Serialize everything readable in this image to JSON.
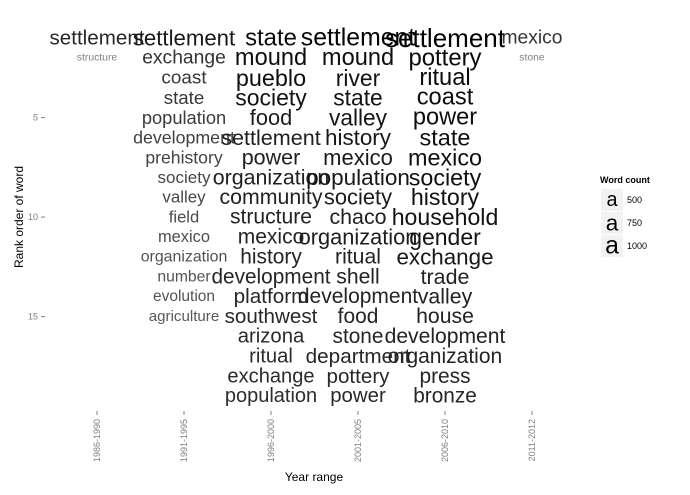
{
  "chart_data": {
    "type": "word-rank",
    "xlabel": "Year range",
    "ylabel": "Rank order of word",
    "categories": [
      "1986-1990",
      "1991-1995",
      "1996-2000",
      "2001-2005",
      "2006-2010",
      "2011-2012"
    ],
    "y_ticks": [
      5,
      10,
      15
    ],
    "ylim": [
      1,
      19
    ],
    "size_range": [
      8,
      26
    ],
    "legend": {
      "title": "Word count",
      "position": "right",
      "items": [
        {
          "label": "500",
          "value": 500
        },
        {
          "label": "750",
          "value": 750
        },
        {
          "label": "1000",
          "value": 1000
        }
      ]
    },
    "series": [
      {
        "category": "1986-1990",
        "words": [
          {
            "word": "settlement",
            "count": 560
          },
          {
            "word": "structure",
            "count": 20
          }
        ]
      },
      {
        "category": "1991-1995",
        "words": [
          {
            "word": "settlement",
            "count": 720
          },
          {
            "word": "exchange",
            "count": 450
          },
          {
            "word": "coast",
            "count": 420
          },
          {
            "word": "state",
            "count": 410
          },
          {
            "word": "population",
            "count": 380
          },
          {
            "word": "development",
            "count": 340
          },
          {
            "word": "prehistory",
            "count": 330
          },
          {
            "word": "society",
            "count": 290
          },
          {
            "word": "valley",
            "count": 280
          },
          {
            "word": "field",
            "count": 260
          },
          {
            "word": "mexico",
            "count": 250
          },
          {
            "word": "organization",
            "count": 220
          },
          {
            "word": "number",
            "count": 210
          },
          {
            "word": "evolution",
            "count": 200
          },
          {
            "word": "agriculture",
            "count": 180
          }
        ]
      },
      {
        "category": "1996-2000",
        "words": [
          {
            "word": "state",
            "count": 900
          },
          {
            "word": "mound",
            "count": 860
          },
          {
            "word": "pueblo",
            "count": 840
          },
          {
            "word": "society",
            "count": 800
          },
          {
            "word": "food",
            "count": 680
          },
          {
            "word": "settlement",
            "count": 660
          },
          {
            "word": "power",
            "count": 650
          },
          {
            "word": "organization",
            "count": 640
          },
          {
            "word": "community",
            "count": 630
          },
          {
            "word": "structure",
            "count": 610
          },
          {
            "word": "mexico",
            "count": 600
          },
          {
            "word": "history",
            "count": 590
          },
          {
            "word": "development",
            "count": 580
          },
          {
            "word": "platform",
            "count": 570
          },
          {
            "word": "southwest",
            "count": 560
          },
          {
            "word": "arizona",
            "count": 540
          },
          {
            "word": "ritual",
            "count": 530
          },
          {
            "word": "exchange",
            "count": 520
          },
          {
            "word": "population",
            "count": 510
          }
        ]
      },
      {
        "category": "2001-2005",
        "words": [
          {
            "word": "settlement",
            "count": 1000
          },
          {
            "word": "mound",
            "count": 860
          },
          {
            "word": "river",
            "count": 790
          },
          {
            "word": "state",
            "count": 780
          },
          {
            "word": "valley",
            "count": 770
          },
          {
            "word": "history",
            "count": 740
          },
          {
            "word": "mexico",
            "count": 700
          },
          {
            "word": "population",
            "count": 750
          },
          {
            "word": "society",
            "count": 690
          },
          {
            "word": "chaco",
            "count": 640
          },
          {
            "word": "organization",
            "count": 680
          },
          {
            "word": "ritual",
            "count": 620
          },
          {
            "word": "shell",
            "count": 610
          },
          {
            "word": "development",
            "count": 600
          },
          {
            "word": "food",
            "count": 590
          },
          {
            "word": "stone",
            "count": 580
          },
          {
            "word": "department",
            "count": 570
          },
          {
            "word": "pottery",
            "count": 560
          },
          {
            "word": "power",
            "count": 550
          }
        ]
      },
      {
        "category": "2006-2010",
        "words": [
          {
            "word": "settlement",
            "count": 1150
          },
          {
            "word": "pottery",
            "count": 900
          },
          {
            "word": "ritual",
            "count": 880
          },
          {
            "word": "coast",
            "count": 870
          },
          {
            "word": "power",
            "count": 860
          },
          {
            "word": "state",
            "count": 850
          },
          {
            "word": "mexico",
            "count": 840
          },
          {
            "word": "society",
            "count": 830
          },
          {
            "word": "history",
            "count": 820
          },
          {
            "word": "household",
            "count": 810
          },
          {
            "word": "gender",
            "count": 800
          },
          {
            "word": "exchange",
            "count": 740
          },
          {
            "word": "trade",
            "count": 640
          },
          {
            "word": "valley",
            "count": 630
          },
          {
            "word": "house",
            "count": 620
          },
          {
            "word": "development",
            "count": 610
          },
          {
            "word": "organization",
            "count": 600
          },
          {
            "word": "press",
            "count": 590
          },
          {
            "word": "bronze",
            "count": 580
          }
        ]
      },
      {
        "category": "2011-2012",
        "words": [
          {
            "word": "mexico",
            "count": 450
          },
          {
            "word": "stone",
            "count": 20
          }
        ]
      }
    ]
  }
}
